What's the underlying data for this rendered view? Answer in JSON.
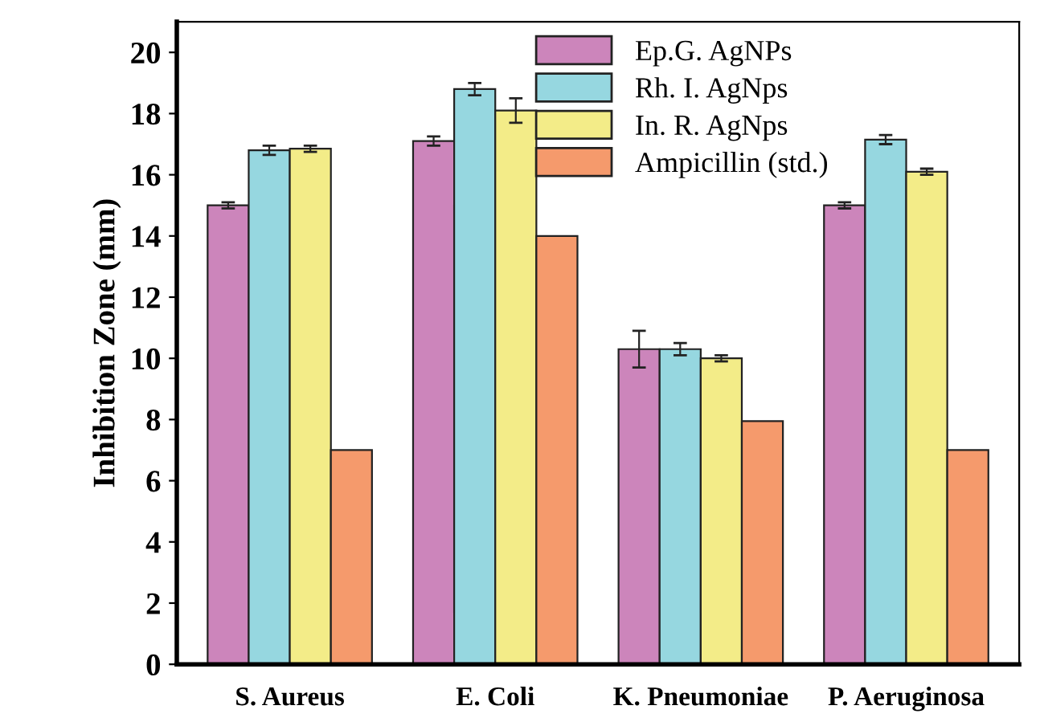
{
  "chart_data": {
    "type": "bar",
    "ylabel": "Inhibition Zone (mm)",
    "categories": [
      "S. Aureus",
      "E. Coli",
      "K. Pneumoniae",
      "P. Aeruginosa"
    ],
    "series": [
      {
        "name": "Ep.G. AgNPs",
        "color": "#cc85bb",
        "values": [
          15.0,
          17.1,
          10.3,
          15.0
        ],
        "errors": [
          0.1,
          0.15,
          0.6,
          0.1
        ]
      },
      {
        "name": "Rh. I. AgNps",
        "color": "#96d7e0",
        "values": [
          16.8,
          18.8,
          10.3,
          17.15
        ],
        "errors": [
          0.15,
          0.2,
          0.2,
          0.15
        ]
      },
      {
        "name": "In. R. AgNps",
        "color": "#f3ec88",
        "values": [
          16.85,
          18.1,
          10.0,
          16.1
        ],
        "errors": [
          0.1,
          0.4,
          0.1,
          0.1
        ]
      },
      {
        "name": "Ampicillin (std.)",
        "color": "#f59a6c",
        "values": [
          7.0,
          14.0,
          7.95,
          7.0
        ]
      }
    ],
    "ylim": [
      0,
      21
    ],
    "yticks": [
      0,
      2,
      4,
      6,
      8,
      10,
      12,
      14,
      16,
      18,
      20
    ],
    "grid": false,
    "legend": "top"
  }
}
